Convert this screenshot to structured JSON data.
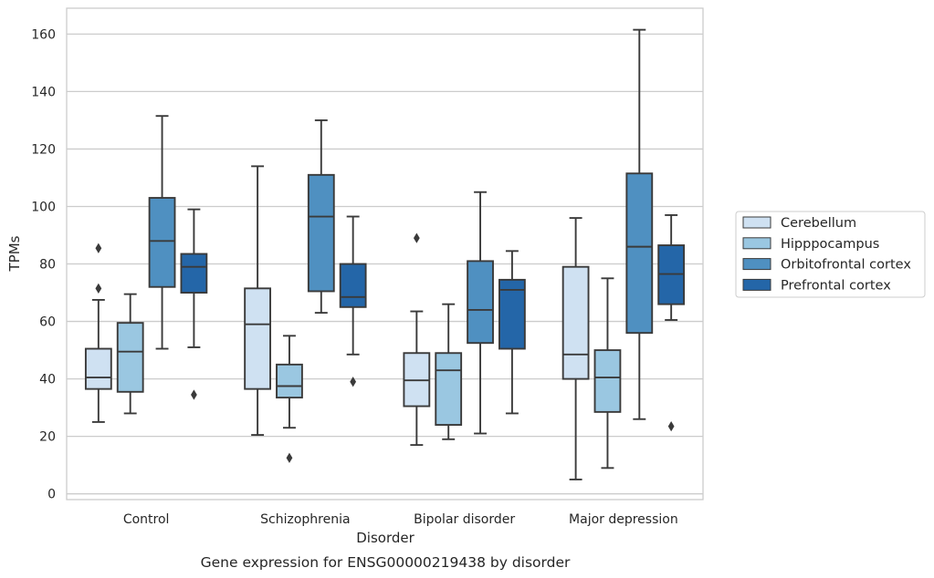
{
  "caption": "Gene expression for ENSG00000219438 by disorder",
  "chart_data": {
    "type": "box",
    "xlabel": "Disorder",
    "ylabel": "TPMs",
    "ylim": [
      -2,
      169
    ],
    "yticks": [
      0,
      20,
      40,
      60,
      80,
      100,
      120,
      140,
      160
    ],
    "grid": "horizontal",
    "legend_position": "right",
    "categories": [
      "Control",
      "Schizophrenia",
      "Bipolar disorder",
      "Major depression"
    ],
    "series": [
      {
        "name": "Cerebellum",
        "color": "#cfe1f2",
        "boxes": [
          {
            "whislo": 25,
            "q1": 36.5,
            "med": 40.5,
            "q3": 50.5,
            "whishi": 67.5,
            "fliers": [
              71.5,
              85.5
            ]
          },
          {
            "whislo": 20.5,
            "q1": 36.5,
            "med": 59,
            "q3": 71.5,
            "whishi": 114,
            "fliers": []
          },
          {
            "whislo": 17,
            "q1": 30.5,
            "med": 39.5,
            "q3": 49,
            "whishi": 63.5,
            "fliers": [
              89
            ]
          },
          {
            "whislo": 5,
            "q1": 40,
            "med": 48.5,
            "q3": 79,
            "whishi": 96,
            "fliers": []
          }
        ]
      },
      {
        "name": "Hipppocampus",
        "color": "#9ac7e1",
        "boxes": [
          {
            "whislo": 28,
            "q1": 35.5,
            "med": 49.5,
            "q3": 59.5,
            "whishi": 69.5,
            "fliers": []
          },
          {
            "whislo": 23,
            "q1": 33.5,
            "med": 37.5,
            "q3": 45,
            "whishi": 55,
            "fliers": [
              12.5
            ]
          },
          {
            "whislo": 19,
            "q1": 24,
            "med": 43,
            "q3": 49,
            "whishi": 66,
            "fliers": []
          },
          {
            "whislo": 9,
            "q1": 28.5,
            "med": 40.5,
            "q3": 50,
            "whishi": 75,
            "fliers": []
          }
        ]
      },
      {
        "name": "Orbitofrontal cortex",
        "color": "#4f90c1",
        "boxes": [
          {
            "whislo": 50.5,
            "q1": 72,
            "med": 88,
            "q3": 103,
            "whishi": 131.5,
            "fliers": []
          },
          {
            "whislo": 63,
            "q1": 70.5,
            "med": 96.5,
            "q3": 111,
            "whishi": 130,
            "fliers": []
          },
          {
            "whislo": 21,
            "q1": 52.5,
            "med": 64,
            "q3": 81,
            "whishi": 105,
            "fliers": []
          },
          {
            "whislo": 26,
            "q1": 56,
            "med": 86,
            "q3": 111.5,
            "whishi": 161.5,
            "fliers": []
          }
        ]
      },
      {
        "name": "Prefrontal cortex",
        "color": "#2466a8",
        "boxes": [
          {
            "whislo": 51,
            "q1": 70,
            "med": 79,
            "q3": 83.5,
            "whishi": 99,
            "fliers": [
              34.5
            ]
          },
          {
            "whislo": 48.5,
            "q1": 65,
            "med": 68.5,
            "q3": 80,
            "whishi": 96.5,
            "fliers": [
              39
            ]
          },
          {
            "whislo": 28,
            "q1": 50.5,
            "med": 71,
            "q3": 74.5,
            "whishi": 84.5,
            "fliers": []
          },
          {
            "whislo": 60.5,
            "q1": 66,
            "med": 76.5,
            "q3": 86.5,
            "whishi": 97,
            "fliers": [
              23.5
            ]
          }
        ]
      }
    ]
  }
}
